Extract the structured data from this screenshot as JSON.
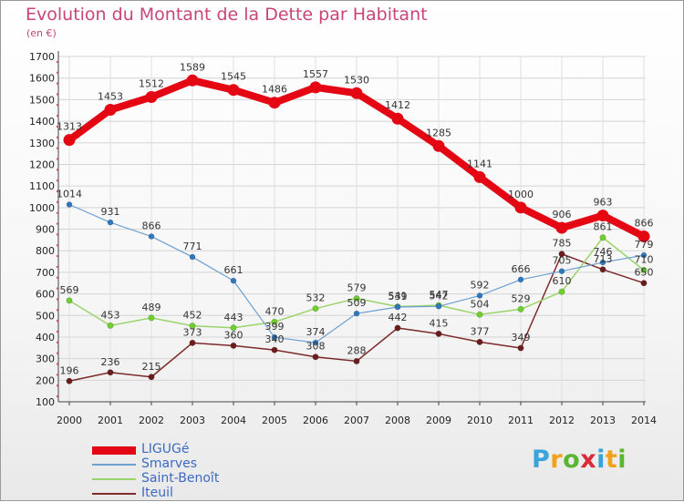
{
  "header": {
    "title": "Evolution du Montant de la Dette par Habitant",
    "subtitle": "(en €)"
  },
  "logo": {
    "text": "Proxiti"
  },
  "chart_data": {
    "type": "line",
    "categories": [
      "2000",
      "2001",
      "2002",
      "2003",
      "2004",
      "2005",
      "2006",
      "2007",
      "2008",
      "2009",
      "2010",
      "2011",
      "2012",
      "2013",
      "2014"
    ],
    "ylim": [
      100,
      1700
    ],
    "yticks": [
      100,
      200,
      300,
      400,
      500,
      600,
      700,
      800,
      900,
      1000,
      1100,
      1200,
      1300,
      1400,
      1500,
      1600,
      1700
    ],
    "grid": true,
    "legend_position": "bottom-left",
    "series": [
      {
        "name": "LIGUGé",
        "color": "#e40613",
        "point_color": "#e40613",
        "values": [
          1313,
          1453,
          1512,
          1589,
          1545,
          1486,
          1557,
          1530,
          1412,
          1285,
          1141,
          1000,
          906,
          963,
          866
        ]
      },
      {
        "name": "Smarves",
        "color": "#6ea0d2",
        "point_color": "#2f78c0",
        "values": [
          1014,
          931,
          866,
          771,
          661,
          399,
          374,
          509,
          539,
          542,
          592,
          666,
          705,
          746,
          779
        ]
      },
      {
        "name": "Saint-Benoît",
        "color": "#9bd46b",
        "point_color": "#6fcf2c",
        "values": [
          569,
          453,
          489,
          452,
          443,
          470,
          532,
          579,
          541,
          547,
          504,
          529,
          610,
          861,
          710
        ]
      },
      {
        "name": "Iteuil",
        "color": "#7d2a2a",
        "point_color": "#6b1d1d",
        "values": [
          196,
          236,
          215,
          373,
          360,
          340,
          308,
          288,
          442,
          415,
          377,
          349,
          785,
          713,
          650
        ]
      }
    ]
  }
}
